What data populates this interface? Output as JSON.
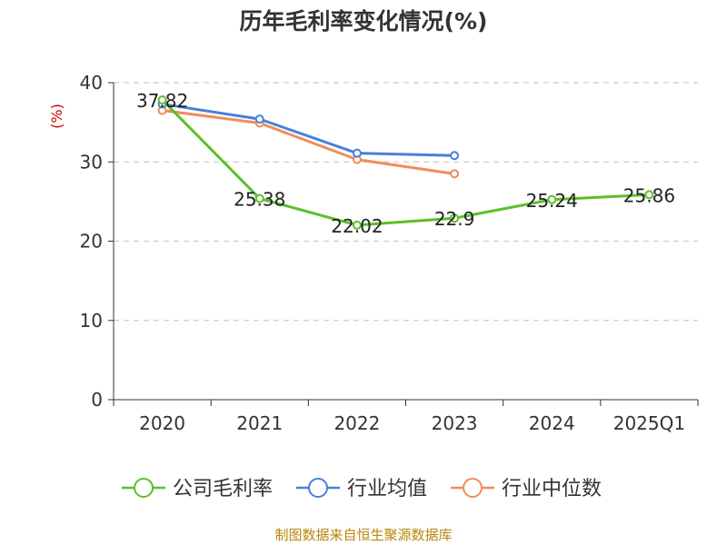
{
  "chart_data": {
    "type": "line",
    "title": "历年毛利率变化情况(%)",
    "ylabel": "(%)",
    "categories": [
      "2020",
      "2021",
      "2022",
      "2023",
      "2024",
      "2025Q1"
    ],
    "ylim": [
      0,
      40
    ],
    "yticks": [
      0,
      10,
      20,
      30,
      40
    ],
    "grid": true,
    "legend_position": "bottom",
    "series": [
      {
        "name": "公司毛利率",
        "color": "#5cbf2a",
        "values": [
          37.82,
          25.38,
          22.02,
          22.9,
          25.24,
          25.86
        ],
        "show_labels": true
      },
      {
        "name": "行业均值",
        "color": "#4a7fd9",
        "values": [
          37.3,
          35.4,
          31.1,
          30.8,
          null,
          null
        ],
        "show_labels": false
      },
      {
        "name": "行业中位数",
        "color": "#f08c5a",
        "values": [
          36.5,
          34.9,
          30.3,
          28.5,
          null,
          null
        ],
        "show_labels": false
      }
    ]
  },
  "source_text": "制图数据来自恒生聚源数据库"
}
